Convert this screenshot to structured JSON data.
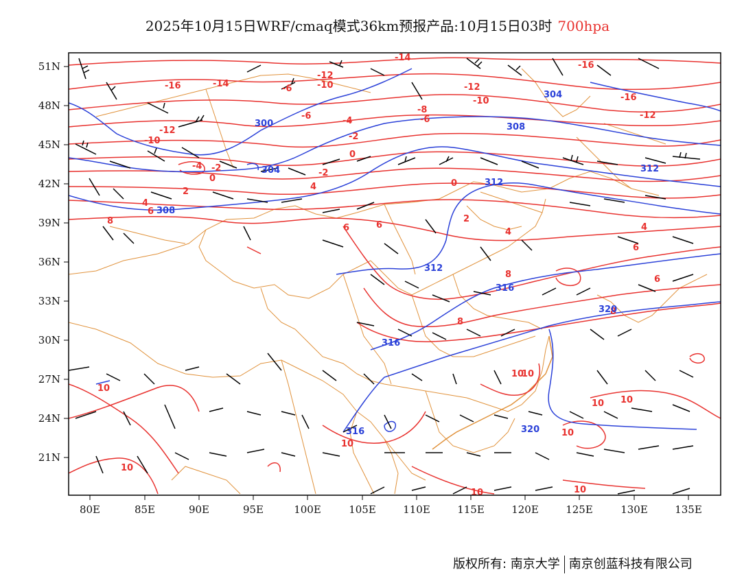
{
  "title": {
    "text": "2025年10月15日WRF/cmaq模式36km预报产品:10月15日03时",
    "level": "700hpa"
  },
  "axes": {
    "x_ticks": [
      "80E",
      "85E",
      "90E",
      "95E",
      "100E",
      "105E",
      "110E",
      "115E",
      "120E",
      "125E",
      "130E",
      "135E"
    ],
    "y_ticks": [
      "51N",
      "48N",
      "45N",
      "42N",
      "39N",
      "36N",
      "33N",
      "30N",
      "27N",
      "24N",
      "21N"
    ]
  },
  "footer": {
    "left": "版权所有: 南京大学",
    "right": "南京创蓝科技有限公司"
  },
  "colors": {
    "temperature_contour": "#e8312e",
    "height_contour": "#2a40d8",
    "border": "#e0913a",
    "wind_barb": "#000000"
  },
  "map_data": {
    "temperature_labels": [
      "-16",
      "-14",
      "-12",
      "-12",
      "-16",
      "-10",
      "-12",
      "-10",
      "-16",
      "-14",
      "-12",
      "-10",
      "-8",
      "-6",
      "-6",
      "-6",
      "-4",
      "-4",
      "-2",
      "-2",
      "-2",
      "0",
      "0",
      "0",
      "2",
      "2",
      "4",
      "4",
      "4",
      "4",
      "6",
      "6",
      "6",
      "6",
      "6",
      "8",
      "8",
      "8",
      "8",
      "10",
      "10",
      "10",
      "10",
      "10",
      "10",
      "10",
      "10",
      "10",
      "10"
    ],
    "height_labels": [
      "300",
      "304",
      "304",
      "308",
      "308",
      "312",
      "312",
      "312",
      "316",
      "316",
      "316",
      "320",
      "320"
    ]
  }
}
